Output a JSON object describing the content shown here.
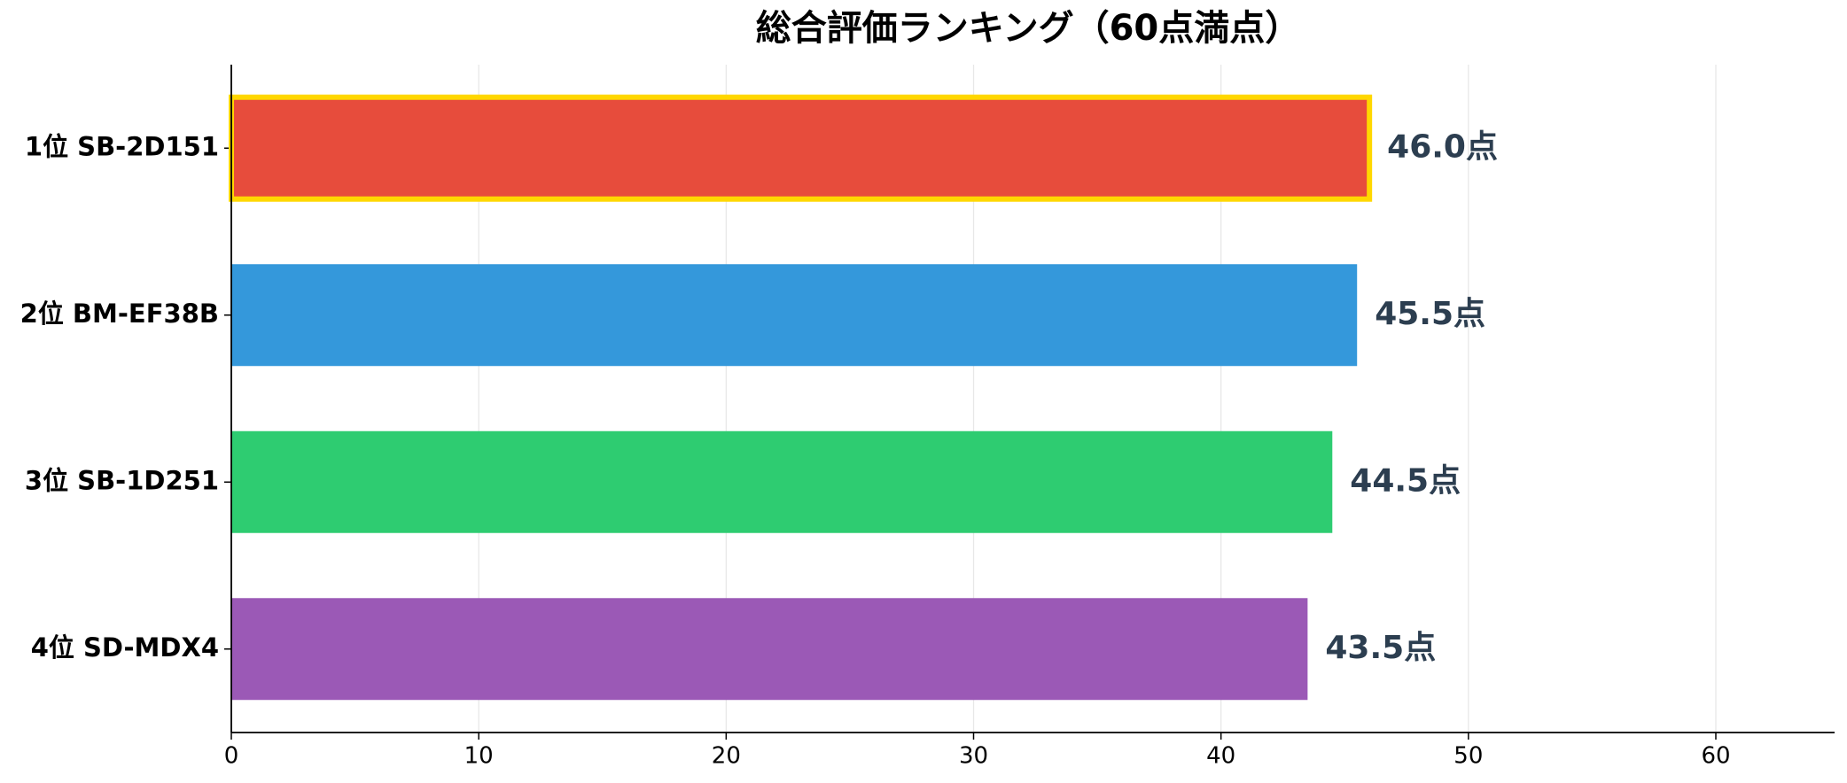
{
  "chart_data": {
    "type": "barh",
    "title": "総合評価ランキング（60点満点）",
    "categories": [
      "1位 SB-2D151",
      "2位 BM-EF38B",
      "3位 SB-1D251",
      "4位 SD-MDX4"
    ],
    "values": [
      46.0,
      45.5,
      44.5,
      43.5
    ],
    "value_labels": [
      "46.0点",
      "45.5点",
      "44.5点",
      "43.5点"
    ],
    "colors": [
      "#e74c3c",
      "#3498db",
      "#2ecc71",
      "#9b59b6"
    ],
    "highlight_index": 0,
    "highlight_color": "#ffd700",
    "xlim": [
      0,
      64.8
    ],
    "xticks": [
      0,
      10,
      20,
      30,
      40,
      50,
      60
    ],
    "grid": true
  }
}
